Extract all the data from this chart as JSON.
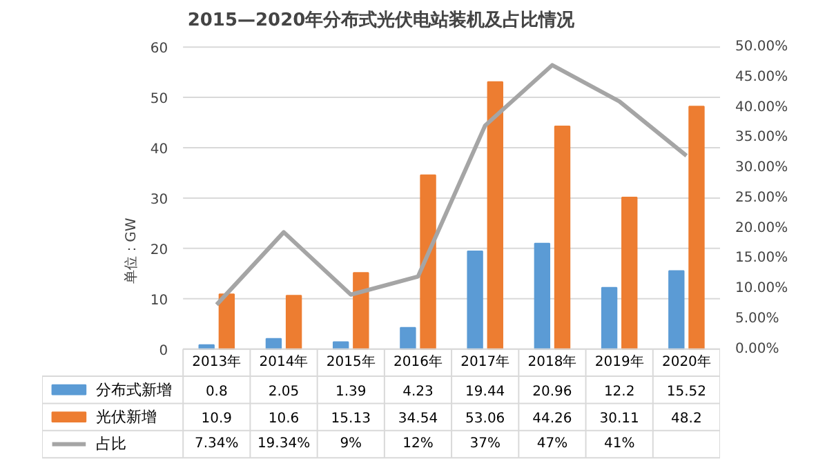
{
  "chart_data": {
    "type": "bar",
    "title": "2015—2020年分布式光伏电站装机及占比情况",
    "ylabel": "单位：GW",
    "categories": [
      "2013年",
      "2014年",
      "2015年",
      "2016年",
      "2017年",
      "2018年",
      "2019年",
      "2020年"
    ],
    "series": [
      {
        "name": "分布式新增",
        "color": "#5b9bd5",
        "values": [
          0.8,
          2.05,
          1.39,
          4.23,
          19.44,
          20.96,
          12.2,
          15.52
        ]
      },
      {
        "name": "光伏新增",
        "color": "#ed7d31",
        "values": [
          10.9,
          10.6,
          15.13,
          34.54,
          53.06,
          44.26,
          30.11,
          48.2
        ]
      },
      {
        "name": "占比",
        "type": "line",
        "axis": "y2",
        "color": "#a5a5a5",
        "values": [
          7.34,
          19.34,
          9,
          12,
          37,
          47,
          41,
          32
        ],
        "value_labels": [
          "7.34%",
          "19.34%",
          "9%",
          "12%",
          "37%",
          "47%",
          "41%",
          null
        ]
      }
    ],
    "ylim": [
      0,
      60
    ],
    "yticks": [
      0,
      10,
      20,
      30,
      40,
      50,
      60
    ],
    "y2lim": [
      0,
      50
    ],
    "y2ticks": [
      {
        "value": 0,
        "label": "0.00%"
      },
      {
        "value": 5,
        "label": "5.00%"
      },
      {
        "value": 10,
        "label": "10.00%"
      },
      {
        "value": 15,
        "label": "15.00%"
      },
      {
        "value": 20,
        "label": "20.00%"
      },
      {
        "value": 25,
        "label": "25.00%"
      },
      {
        "value": 30,
        "label": "30.00%"
      },
      {
        "value": 35,
        "label": "35.00%"
      },
      {
        "value": 40,
        "label": "40.00%"
      },
      {
        "value": 45,
        "label": "45.00%"
      },
      {
        "value": 50,
        "label": "50.00%"
      }
    ],
    "data_labels": true,
    "legend": "bottom",
    "grid": "y"
  }
}
